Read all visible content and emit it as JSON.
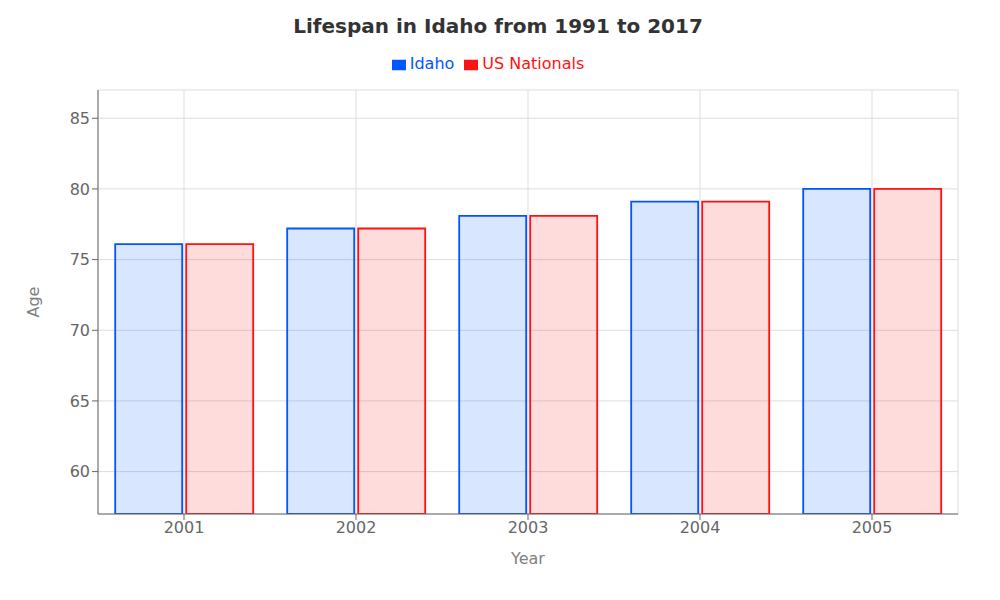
{
  "chart_data": {
    "type": "bar",
    "title": "Lifespan in Idaho from 1991 to 2017",
    "x_label": "Year",
    "y_label": "Age",
    "categories": [
      "2001",
      "2002",
      "2003",
      "2004",
      "2005"
    ],
    "series": [
      {
        "name": "Idaho",
        "color": "#0055ff",
        "values": [
          76.1,
          77.2,
          78.1,
          79.1,
          80.0
        ]
      },
      {
        "name": "US Nationals",
        "color": "#ff1111",
        "values": [
          76.1,
          77.2,
          78.1,
          79.1,
          80.0
        ]
      }
    ],
    "ylim": [
      57,
      87
    ],
    "yticks": [
      60,
      65,
      70,
      75,
      80,
      85
    ],
    "grid": true
  }
}
